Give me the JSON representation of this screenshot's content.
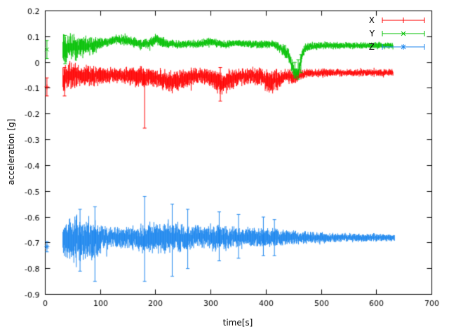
{
  "chart_data": {
    "type": "scatter-errorbars",
    "title": "",
    "xlabel": "time[s]",
    "ylabel": "acceleration [g]",
    "xlim": [
      0,
      700
    ],
    "ylim": [
      -0.9,
      0.2
    ],
    "xticks": [
      0,
      100,
      200,
      300,
      400,
      500,
      600,
      700
    ],
    "yticks": [
      0.2,
      0.1,
      0,
      -0.1,
      -0.2,
      -0.3,
      -0.4,
      -0.5,
      -0.6,
      -0.7,
      -0.8,
      -0.9
    ],
    "grid": false,
    "legend_position": "top-right-inside",
    "background_color": "#ffffff",
    "axis_color": "#000000",
    "x_data_range": [
      30,
      633
    ],
    "series": [
      {
        "name": "X",
        "color": "#ff0000",
        "marker": "plus",
        "first_point": {
          "t": 3,
          "y": -0.095,
          "err": 0.035
        },
        "band": [
          [
            32,
            -0.07,
            0.05
          ],
          [
            40,
            -0.05,
            0.045
          ],
          [
            55,
            -0.05,
            0.04
          ],
          [
            70,
            -0.055,
            0.035
          ],
          [
            85,
            -0.05,
            0.035
          ],
          [
            100,
            -0.05,
            0.03
          ],
          [
            120,
            -0.05,
            0.025
          ],
          [
            140,
            -0.05,
            0.025
          ],
          [
            160,
            -0.055,
            0.03
          ],
          [
            175,
            -0.06,
            0.035
          ],
          [
            185,
            -0.06,
            0.035
          ],
          [
            200,
            -0.055,
            0.03
          ],
          [
            215,
            -0.07,
            0.035
          ],
          [
            230,
            -0.075,
            0.035
          ],
          [
            245,
            -0.07,
            0.035
          ],
          [
            260,
            -0.06,
            0.03
          ],
          [
            280,
            -0.05,
            0.025
          ],
          [
            300,
            -0.06,
            0.035
          ],
          [
            315,
            -0.08,
            0.04
          ],
          [
            330,
            -0.075,
            0.04
          ],
          [
            345,
            -0.06,
            0.03
          ],
          [
            360,
            -0.055,
            0.03
          ],
          [
            375,
            -0.05,
            0.028
          ],
          [
            390,
            -0.055,
            0.03
          ],
          [
            405,
            -0.08,
            0.04
          ],
          [
            420,
            -0.07,
            0.035
          ],
          [
            435,
            -0.05,
            0.022
          ],
          [
            450,
            -0.06,
            0.025
          ],
          [
            465,
            -0.045,
            0.015
          ],
          [
            500,
            -0.04,
            0.013
          ],
          [
            550,
            -0.04,
            0.012
          ],
          [
            600,
            -0.04,
            0.012
          ],
          [
            630,
            -0.04,
            0.012
          ]
        ],
        "outliers": [
          [
            35,
            -0.13,
            -0.02
          ],
          [
            180,
            -0.255,
            -0.04
          ],
          [
            317,
            -0.15,
            -0.02
          ]
        ]
      },
      {
        "name": "Y",
        "color": "#00c000",
        "marker": "cross",
        "first_point": {
          "t": 3,
          "y": 0.05,
          "err": 0.035
        },
        "band": [
          [
            32,
            0.05,
            0.05
          ],
          [
            40,
            0.06,
            0.045
          ],
          [
            55,
            0.055,
            0.04
          ],
          [
            70,
            0.06,
            0.035
          ],
          [
            85,
            0.065,
            0.03
          ],
          [
            100,
            0.075,
            0.02
          ],
          [
            115,
            0.08,
            0.015
          ],
          [
            130,
            0.09,
            0.015
          ],
          [
            145,
            0.085,
            0.018
          ],
          [
            160,
            0.08,
            0.018
          ],
          [
            175,
            0.07,
            0.015
          ],
          [
            190,
            0.075,
            0.018
          ],
          [
            200,
            0.09,
            0.02
          ],
          [
            210,
            0.08,
            0.018
          ],
          [
            225,
            0.07,
            0.015
          ],
          [
            250,
            0.07,
            0.013
          ],
          [
            275,
            0.072,
            0.013
          ],
          [
            300,
            0.078,
            0.015
          ],
          [
            325,
            0.07,
            0.013
          ],
          [
            350,
            0.075,
            0.013
          ],
          [
            375,
            0.07,
            0.013
          ],
          [
            400,
            0.07,
            0.013
          ],
          [
            415,
            0.072,
            0.013
          ],
          [
            430,
            0.05,
            0.02
          ],
          [
            440,
            0.03,
            0.02
          ],
          [
            450,
            -0.03,
            0.025
          ],
          [
            458,
            -0.04,
            0.02
          ],
          [
            465,
            0.03,
            0.02
          ],
          [
            472,
            0.06,
            0.015
          ],
          [
            500,
            0.065,
            0.012
          ],
          [
            550,
            0.065,
            0.011
          ],
          [
            600,
            0.065,
            0.011
          ],
          [
            630,
            0.065,
            0.011
          ]
        ],
        "outliers": [
          [
            36,
            -0.005,
            0.105
          ],
          [
            452,
            -0.06,
            0.0
          ],
          [
            458,
            -0.065,
            0.01
          ],
          [
            463,
            -0.04,
            0.03
          ]
        ]
      },
      {
        "name": "Z",
        "color": "#1c86ee",
        "marker": "star",
        "first_point": {
          "t": 3,
          "y": -0.715,
          "err": 0.02
        },
        "band": [
          [
            32,
            -0.69,
            0.055
          ],
          [
            45,
            -0.69,
            0.075
          ],
          [
            60,
            -0.685,
            0.075
          ],
          [
            75,
            -0.685,
            0.07
          ],
          [
            90,
            -0.685,
            0.065
          ],
          [
            105,
            -0.68,
            0.04
          ],
          [
            130,
            -0.68,
            0.035
          ],
          [
            160,
            -0.68,
            0.035
          ],
          [
            180,
            -0.685,
            0.05
          ],
          [
            200,
            -0.68,
            0.05
          ],
          [
            220,
            -0.68,
            0.055
          ],
          [
            240,
            -0.68,
            0.05
          ],
          [
            260,
            -0.68,
            0.04
          ],
          [
            285,
            -0.675,
            0.035
          ],
          [
            310,
            -0.68,
            0.045
          ],
          [
            330,
            -0.68,
            0.035
          ],
          [
            355,
            -0.68,
            0.035
          ],
          [
            375,
            -0.68,
            0.03
          ],
          [
            400,
            -0.68,
            0.03
          ],
          [
            420,
            -0.68,
            0.03
          ],
          [
            440,
            -0.68,
            0.025
          ],
          [
            470,
            -0.68,
            0.02
          ],
          [
            500,
            -0.68,
            0.018
          ],
          [
            540,
            -0.68,
            0.015
          ],
          [
            580,
            -0.68,
            0.013
          ],
          [
            620,
            -0.68,
            0.012
          ],
          [
            633,
            -0.68,
            0.012
          ]
        ],
        "outliers": [
          [
            63,
            -0.81,
            -0.57
          ],
          [
            90,
            -0.85,
            -0.56
          ],
          [
            180,
            -0.85,
            -0.52
          ],
          [
            230,
            -0.83,
            -0.55
          ],
          [
            258,
            -0.8,
            -0.57
          ],
          [
            315,
            -0.77,
            -0.58
          ],
          [
            350,
            -0.76,
            -0.59
          ],
          [
            395,
            -0.75,
            -0.6
          ],
          [
            415,
            -0.75,
            -0.61
          ]
        ]
      }
    ]
  }
}
